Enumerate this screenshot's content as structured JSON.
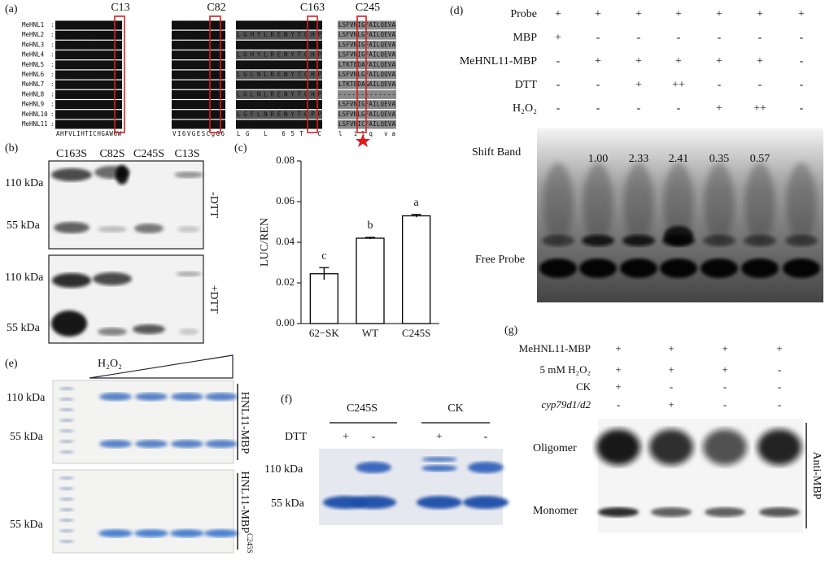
{
  "panel_a": {
    "label": "(a)",
    "sites": [
      "C13",
      "C82",
      "C163",
      "C245"
    ],
    "rows": [
      {
        "name": "MeHNL1",
        "sep": ":",
        "blocks": [
          "AHFVLIHTICHGAWVW",
          "VILVGESCGGL",
          "LGHYLCENYTCHP",
          "LSFVNIGFAILQEVA"
        ]
      },
      {
        "name": "MeHNL2",
        "sep": ":",
        "blocks": [
          "AHFVLIHTICHGAWIW",
          "VILVGESCGGL",
          "LGHYLRENYTCHP",
          "LSFVNLGFAILQEVA"
        ]
      },
      {
        "name": "MeHNL3",
        "sep": ":",
        "blocks": [
          "AHFVLIHTICHGAWIW",
          "VILVGESCGGL",
          "LGSYLRENYTCHP",
          "LSFVNIGFAILQEVA"
        ]
      },
      {
        "name": "MeHNL4",
        "sep": ":",
        "blocks": [
          "AHFVLIHTICHGAWIW",
          "VILVGESCGGL",
          "LGHYLRENYTCHP",
          "LSFVNIGFAILQEVA"
        ]
      },
      {
        "name": "MeHNL5",
        "sep": ":",
        "blocks": [
          "AHFVLIHTICHGAWIW",
          "VILVGESCGGL",
          "LGFLNRENYTCSV",
          "LTKTEDAFAILQEVA"
        ]
      },
      {
        "name": "MeHNL6",
        "sep": ":",
        "blocks": [
          "AHFVLIHTICHGAWIW",
          "VILVGESCGGL",
          "LGLNLRENYTCHP",
          "LSFVNLGFAILQQVA"
        ]
      },
      {
        "name": "MeHNL7",
        "sep": ":",
        "blocks": [
          "AHFVLIHTICHGAWIW",
          "VILVGESCGGL",
          "LGFLNRENYTCPP",
          "LTKTEDAGAILQEVA"
        ]
      },
      {
        "name": "MeHNL8",
        "sep": ":",
        "blocks": [
          "AHFVLIHTICHGAWIW",
          "VILVGESCGGL",
          "LGLNLRENYTCHP",
          "-------------"
        ]
      },
      {
        "name": "MeHNL9",
        "sep": ":",
        "blocks": [
          "AHFVLIHTICHGAWIW",
          "VILVGESCGGL",
          "LGFLNRENYTCHI",
          "LSFVNIGFAILQEVA"
        ]
      },
      {
        "name": "MeHNL10",
        "sep": ":",
        "blocks": [
          "AHFVLIHTICHGAWIW",
          "VILVGESCGGL",
          "LGFLNRENYTCPP",
          "LSFVNLGFAILQEVA"
        ]
      },
      {
        "name": "MeHNL11",
        "sep": ":",
        "blocks": [
          "AHFVLIHTICHGAWIW",
          "VILVGESCGGL",
          "LGFLNRENYTCPP",
          "LSFVNICFAILQEVA"
        ]
      }
    ],
    "consensus": [
      "AHFVLIHTICHGAW6W",
      "VI6VGESCgG6",
      "LG  L    65T C",
      "l   ilq va"
    ]
  },
  "panel_b": {
    "label": "(b)",
    "lanes": [
      "C163S",
      "C82S",
      "C245S",
      "C13S"
    ],
    "markers_top": [
      "110 kDa",
      "55 kDa"
    ],
    "markers_bottom": [
      "110 kDa",
      "55 kDa"
    ],
    "conditions": [
      "-DTT",
      "+DTT"
    ]
  },
  "panel_c": {
    "label": "(c)",
    "chart_data": {
      "type": "bar",
      "ylabel": "LUC/REN",
      "categories": [
        "62−SK",
        "WT",
        "C245S"
      ],
      "values": [
        0.0245,
        0.042,
        0.053
      ],
      "errors": [
        0.003,
        0.0004,
        0.0007
      ],
      "letters": [
        "c",
        "b",
        "a"
      ],
      "color": "#ffffff",
      "ylim": [
        0,
        0.08
      ],
      "yticks": [
        {
          "value": 0,
          "label": "0.00"
        },
        {
          "value": 0.02,
          "label": "0.02"
        },
        {
          "value": 0.04,
          "label": "0.04"
        },
        {
          "value": 0.06,
          "label": "0.06"
        },
        {
          "value": 0.08,
          "label": "0.08"
        }
      ]
    }
  },
  "panel_d": {
    "label": "(d)",
    "rows": [
      {
        "name": "Probe",
        "marks": [
          "+",
          "+",
          "+",
          "+",
          "+",
          "+",
          "+"
        ]
      },
      {
        "name": "MBP",
        "marks": [
          "+",
          "-",
          "-",
          "-",
          "-",
          "-",
          "-"
        ]
      },
      {
        "name": "MeHNL11-MBP",
        "marks": [
          "-",
          "+",
          "+",
          "+",
          "+",
          "+",
          "-"
        ]
      },
      {
        "name": "DTT",
        "marks": [
          "-",
          "-",
          "+",
          "++",
          "-",
          "-",
          "-"
        ]
      },
      {
        "name": "H₂O₂",
        "marks": [
          "-",
          "-",
          "-",
          "-",
          "+",
          "++",
          "-"
        ]
      }
    ],
    "shift_label": "Shift Band",
    "free_label": "Free Probe",
    "quant": [
      "1.00",
      "2.33",
      "2.41",
      "0.35",
      "0.57"
    ]
  },
  "panel_e": {
    "label": "(e)",
    "treatment": "H₂O₂",
    "markers": [
      "110  kDa",
      "55  kDa",
      "55  kDa"
    ],
    "gel_top": {
      "text": "HNL11-MBP"
    },
    "gel_bottom": {
      "text": "HNL11-MBP",
      "sup": "C245S"
    }
  },
  "panel_f": {
    "label": "(f)",
    "groups": [
      "C245S",
      "CK"
    ],
    "dtt_label": "DTT",
    "dtt": [
      "+",
      "-",
      "+",
      "-"
    ],
    "markers": [
      "110  kDa",
      "55  kDa"
    ]
  },
  "panel_g": {
    "label": "(g)",
    "rows": [
      {
        "name": "MeHNL11-MBP",
        "marks": [
          "+",
          "+",
          "+",
          "+"
        ]
      },
      {
        "name": "5 mM H₂O₂",
        "marks": [
          "+",
          "+",
          "+",
          "-"
        ]
      },
      {
        "name": "CK",
        "marks": [
          "+",
          "-",
          "-",
          "-"
        ]
      },
      {
        "name": "cyp79d1/d2",
        "marks": [
          "-",
          "+",
          "-",
          "-"
        ]
      }
    ],
    "oligomer": "Oligomer",
    "monomer": "Monomer",
    "antibody": "Anti-MBP"
  }
}
